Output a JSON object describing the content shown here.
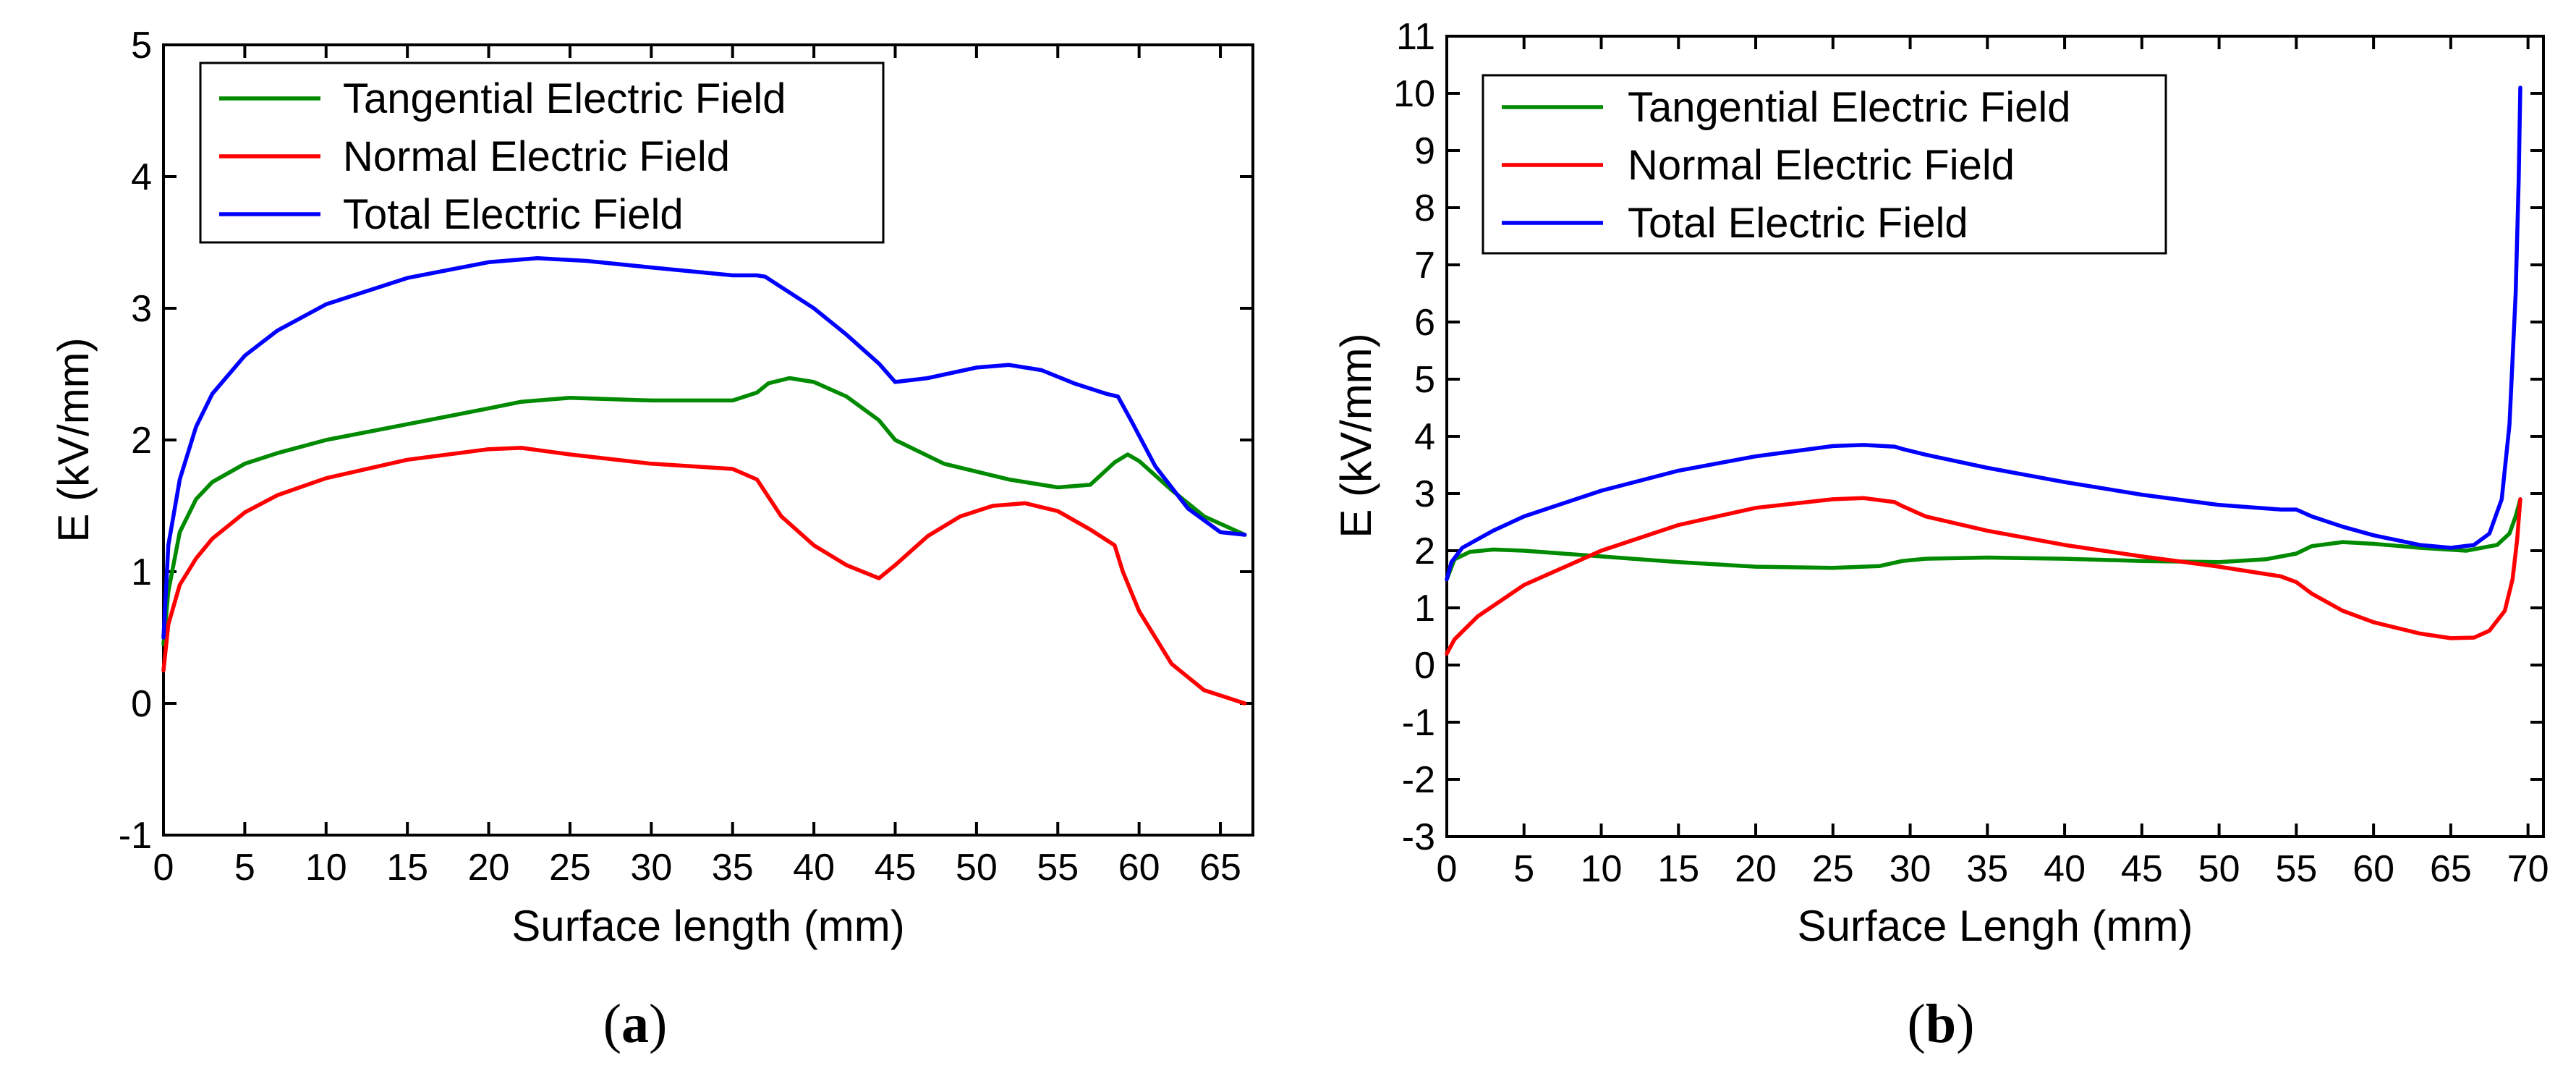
{
  "colors": {
    "tangential": "#008a00",
    "normal": "#ff0000",
    "total": "#0000ff"
  },
  "chart_data": [
    {
      "type": "line",
      "panel_label": "a",
      "xlabel": "Surface length (mm)",
      "ylabel": "E (kV/mm)",
      "xlim": [
        0,
        67
      ],
      "ylim": [
        -1,
        5
      ],
      "xticks": [
        0,
        5,
        10,
        15,
        20,
        25,
        30,
        35,
        40,
        45,
        50,
        55,
        60,
        65
      ],
      "yticks": [
        -1,
        0,
        1,
        2,
        3,
        4,
        5
      ],
      "legend_position": "top-left",
      "series": [
        {
          "name": "Tangential Electric Field",
          "color_key": "tangential",
          "x": [
            0,
            0.3,
            1,
            2,
            3,
            5,
            7,
            10,
            15,
            20,
            22,
            25,
            30,
            35,
            36.5,
            37.2,
            38.5,
            40,
            42,
            44,
            45,
            48,
            52,
            55,
            57,
            58.5,
            59.3,
            60,
            62,
            64,
            66.5
          ],
          "y": [
            0.45,
            0.85,
            1.3,
            1.55,
            1.68,
            1.82,
            1.9,
            2.0,
            2.12,
            2.24,
            2.29,
            2.32,
            2.3,
            2.3,
            2.36,
            2.43,
            2.47,
            2.44,
            2.33,
            2.15,
            2.0,
            1.82,
            1.7,
            1.64,
            1.66,
            1.83,
            1.89,
            1.84,
            1.62,
            1.42,
            1.28
          ]
        },
        {
          "name": "Normal Electric Field",
          "color_key": "normal",
          "x": [
            0,
            0.3,
            1,
            2,
            3,
            5,
            7,
            10,
            15,
            20,
            22,
            25,
            30,
            35,
            36.5,
            38,
            40,
            42,
            44,
            45,
            47,
            49,
            51,
            53,
            55,
            57,
            58.5,
            59,
            60,
            62,
            64,
            66.5
          ],
          "y": [
            0.25,
            0.6,
            0.9,
            1.1,
            1.25,
            1.45,
            1.58,
            1.71,
            1.85,
            1.93,
            1.94,
            1.89,
            1.82,
            1.78,
            1.7,
            1.42,
            1.2,
            1.05,
            0.95,
            1.05,
            1.27,
            1.42,
            1.5,
            1.52,
            1.46,
            1.32,
            1.2,
            1.0,
            0.7,
            0.3,
            0.1,
            0.0
          ]
        },
        {
          "name": "Total Electric Field",
          "color_key": "total",
          "x": [
            0,
            0.3,
            1,
            2,
            3,
            5,
            7,
            10,
            15,
            20,
            23,
            26,
            30,
            35,
            36.5,
            37,
            40,
            42,
            44,
            45,
            47,
            50,
            52,
            54,
            56,
            58,
            58.7,
            59.5,
            61,
            63,
            65,
            66.5
          ],
          "y": [
            0.5,
            1.2,
            1.7,
            2.1,
            2.35,
            2.64,
            2.83,
            3.03,
            3.23,
            3.35,
            3.38,
            3.36,
            3.31,
            3.25,
            3.25,
            3.24,
            3.0,
            2.8,
            2.58,
            2.44,
            2.47,
            2.55,
            2.57,
            2.53,
            2.43,
            2.35,
            2.33,
            2.15,
            1.8,
            1.48,
            1.3,
            1.28
          ]
        }
      ]
    },
    {
      "type": "line",
      "panel_label": "b",
      "xlabel": "Surface Lengh (mm)",
      "ylabel": "E (kV/mm)",
      "xlim": [
        0,
        71
      ],
      "ylim": [
        -3,
        11
      ],
      "xticks": [
        0,
        5,
        10,
        15,
        20,
        25,
        30,
        35,
        40,
        45,
        50,
        55,
        60,
        65,
        70
      ],
      "yticks": [
        -3,
        -2,
        -1,
        0,
        1,
        2,
        3,
        4,
        5,
        6,
        7,
        8,
        9,
        10,
        11
      ],
      "legend_position": "top-left",
      "series": [
        {
          "name": "Tangential Electric Field",
          "color_key": "tangential",
          "x": [
            0,
            0.5,
            1.5,
            3,
            5,
            10,
            15,
            20,
            25,
            28,
            29.5,
            31,
            35,
            40,
            45,
            50,
            53,
            55,
            56,
            58,
            60,
            63,
            66,
            68,
            68.8,
            69.2,
            69.5
          ],
          "y": [
            1.5,
            1.85,
            1.98,
            2.02,
            2.0,
            1.9,
            1.8,
            1.72,
            1.7,
            1.73,
            1.82,
            1.86,
            1.88,
            1.86,
            1.82,
            1.8,
            1.85,
            1.95,
            2.08,
            2.15,
            2.12,
            2.05,
            2.0,
            2.1,
            2.3,
            2.6,
            2.9
          ]
        },
        {
          "name": "Normal Electric Field",
          "color_key": "normal",
          "x": [
            0,
            0.5,
            2,
            5,
            10,
            15,
            20,
            25,
            27,
            29,
            29.5,
            31,
            35,
            40,
            45,
            50,
            54,
            55,
            56,
            58,
            60,
            63,
            65,
            66.5,
            67.5,
            68.5,
            69,
            69.3,
            69.5
          ],
          "y": [
            0.2,
            0.45,
            0.85,
            1.4,
            2.0,
            2.45,
            2.75,
            2.9,
            2.92,
            2.85,
            2.78,
            2.6,
            2.35,
            2.1,
            1.9,
            1.72,
            1.55,
            1.45,
            1.25,
            0.95,
            0.75,
            0.55,
            0.47,
            0.48,
            0.6,
            0.95,
            1.5,
            2.2,
            2.9
          ]
        },
        {
          "name": "Total Electric Field",
          "color_key": "total",
          "x": [
            0,
            0.3,
            1,
            3,
            5,
            10,
            15,
            20,
            25,
            27,
            29,
            29.5,
            31,
            35,
            40,
            45,
            50,
            54,
            55,
            56,
            58,
            60,
            63,
            65,
            66.5,
            67.5,
            68.3,
            68.8,
            69.2,
            69.4,
            69.5
          ],
          "y": [
            1.5,
            1.8,
            2.05,
            2.35,
            2.6,
            3.05,
            3.4,
            3.65,
            3.83,
            3.85,
            3.82,
            3.78,
            3.68,
            3.45,
            3.2,
            2.98,
            2.8,
            2.72,
            2.72,
            2.6,
            2.42,
            2.27,
            2.1,
            2.05,
            2.1,
            2.3,
            2.9,
            4.2,
            6.5,
            8.5,
            10.1
          ]
        }
      ]
    }
  ]
}
